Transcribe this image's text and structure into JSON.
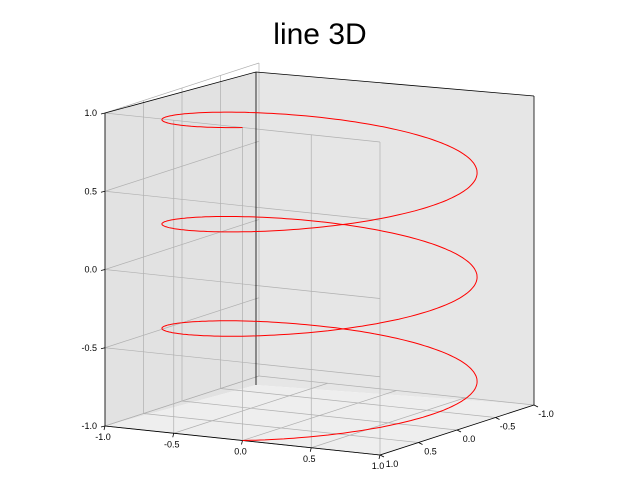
{
  "chart_data": {
    "type": "line3d",
    "title": "line 3D",
    "xlabel": "",
    "ylabel": "",
    "zlabel": "",
    "xlim": [
      -1.0,
      1.0
    ],
    "ylim": [
      -1.0,
      1.0
    ],
    "zlim": [
      -1.0,
      1.0
    ],
    "x_ticks": [
      "-1.0",
      "-0.5",
      "0.0",
      "0.5",
      "1.0"
    ],
    "y_ticks": [
      "1.0",
      "0.5",
      "0.0",
      "-0.5",
      "-1.0"
    ],
    "z_ticks": [
      "1.0",
      "0.5",
      "0.0",
      "-0.5",
      "-1.0"
    ],
    "grid": true,
    "series": [
      {
        "color": "#ff0000",
        "function": "helix",
        "parametric": {
          "x": "sin(t)",
          "y": "cos(t)",
          "z": "t/(3*pi) - 1",
          "t_range": [
            0,
            18.85
          ],
          "turns": 3
        }
      }
    ]
  }
}
